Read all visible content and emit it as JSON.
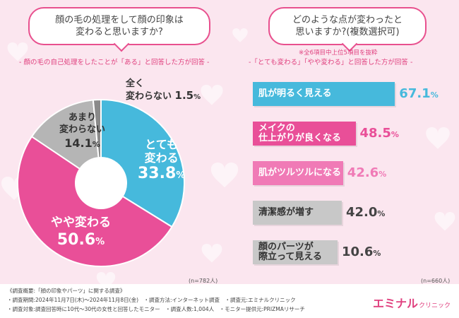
{
  "left": {
    "question_line1": "顔の毛の処理をして顔の印象は",
    "question_line2": "変わると思いますか?",
    "subtitle": "- 顔の毛の自己処理をしたことが「ある」と回答した方が回答 -",
    "n": "(n=782人)"
  },
  "right": {
    "question_line1": "どのような点が変わったと",
    "question_line2": "思いますか?(複数選択可)",
    "note": "※全6項目中上位5項目を抜粋",
    "subtitle": "-「とても変わる」「やや変わる」と回答した方が回答 -",
    "n": "(n=660人)"
  },
  "chart_data": [
    {
      "type": "pie",
      "categories": [
        "とても変わる",
        "やや変わる",
        "あまり変わらない",
        "全く変わらない"
      ],
      "values": [
        33.8,
        50.6,
        14.1,
        1.5
      ],
      "unit": "%",
      "colors": [
        "#46b9dc",
        "#e94f98",
        "#b5b5b5",
        "#8a8a8a"
      ],
      "donut": true,
      "labels": [
        {
          "line1": "とても",
          "line2": "変わる",
          "value": "33.8",
          "unit": "%"
        },
        {
          "line1": "やや変わる",
          "line2": "",
          "value": "50.6",
          "unit": "%"
        },
        {
          "line1": "あまり",
          "line2": "変わらない",
          "value": "14.1",
          "unit": "%"
        },
        {
          "line1": "全く",
          "line2": "変わらない",
          "value": "1.5",
          "unit": "%"
        }
      ]
    },
    {
      "type": "bar",
      "orientation": "horizontal",
      "categories": [
        "肌が明るく見える",
        "メイクの仕上がりが良くなる",
        "肌がツルツルになる",
        "清潔感が増す",
        "顔のパーツが際立って見える"
      ],
      "values": [
        67.1,
        48.5,
        42.6,
        42.0,
        10.6
      ],
      "unit": "%",
      "colors": [
        "#46b9dc",
        "#e94f98",
        "#f07ab6",
        "#c8c8c8",
        "#c8c8c8"
      ],
      "xlim": [
        0,
        100
      ],
      "bar_labels": [
        {
          "line1": "肌が明るく見える",
          "line2": ""
        },
        {
          "line1": "メイクの",
          "line2": "仕上がりが良くなる"
        },
        {
          "line1": "肌がツルツルになる",
          "line2": ""
        },
        {
          "line1": "清潔感が増す",
          "line2": ""
        },
        {
          "line1": "顔のパーツが",
          "line2": "際立って見える"
        }
      ],
      "value_labels": [
        "67.1",
        "48.5",
        "42.6",
        "42.0",
        "10.6"
      ],
      "value_colors": [
        "#46b9dc",
        "#e94f98",
        "#f07ab6",
        "#444444",
        "#444444"
      ]
    }
  ],
  "footer": {
    "line1": "《調査概要:「顔の印象やパーツ」に関する調査》",
    "line2": "・調査期間:2024年11月7日(木)〜2024年11月8日(金)　・調査方法:インターネット調査　・調査元:エミナルクリニック",
    "line3": "・調査対象:調査回答時に10代〜30代の女性と回答したモニター　・調査人数:1,004人　・モニター提供元:PRIZMAリサーチ"
  },
  "logo": {
    "main": "エミナル",
    "sub": "クリニック"
  }
}
